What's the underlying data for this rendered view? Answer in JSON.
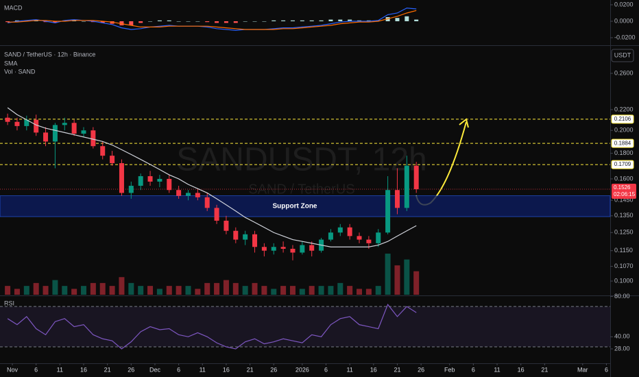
{
  "chart_data": {
    "type": "candlestick",
    "title": "SAND / TetherUS · 12h · Binance",
    "watermark": "SANDUSDT, 12h",
    "watermark_subtitle": "SAND / TetherUS",
    "currency": "USDT",
    "indicators": [
      "SMA",
      "Vol · SAND"
    ],
    "x": [
      -1,
      1,
      3,
      5,
      7,
      9,
      11,
      13,
      15,
      17,
      19,
      21,
      23,
      25,
      27,
      29,
      31,
      33,
      35,
      37,
      39,
      41,
      43,
      45,
      47,
      49,
      51,
      53,
      55,
      57,
      59,
      61,
      63,
      65,
      67,
      69,
      71,
      73,
      75,
      77,
      79,
      81,
      83,
      85
    ],
    "open": [
      0.212,
      0.208,
      0.204,
      0.21,
      0.198,
      0.19,
      0.205,
      0.207,
      0.197,
      0.2,
      0.186,
      0.178,
      0.172,
      0.15,
      0.155,
      0.162,
      0.158,
      0.16,
      0.152,
      0.148,
      0.15,
      0.147,
      0.14,
      0.132,
      0.126,
      0.121,
      0.124,
      0.117,
      0.115,
      0.117,
      0.116,
      0.114,
      0.118,
      0.115,
      0.121,
      0.125,
      0.128,
      0.123,
      0.121,
      0.119,
      0.125,
      0.152,
      0.14,
      0.17
    ],
    "high": [
      0.216,
      0.212,
      0.214,
      0.215,
      0.203,
      0.207,
      0.212,
      0.21,
      0.203,
      0.203,
      0.19,
      0.182,
      0.175,
      0.158,
      0.164,
      0.166,
      0.163,
      0.163,
      0.155,
      0.152,
      0.153,
      0.15,
      0.142,
      0.135,
      0.128,
      0.126,
      0.126,
      0.119,
      0.119,
      0.12,
      0.118,
      0.12,
      0.12,
      0.122,
      0.127,
      0.13,
      0.13,
      0.125,
      0.123,
      0.127,
      0.162,
      0.168,
      0.178,
      0.173
    ],
    "low": [
      0.205,
      0.2,
      0.2,
      0.195,
      0.186,
      0.168,
      0.2,
      0.195,
      0.194,
      0.184,
      0.175,
      0.17,
      0.148,
      0.146,
      0.152,
      0.155,
      0.154,
      0.15,
      0.146,
      0.145,
      0.145,
      0.138,
      0.13,
      0.124,
      0.119,
      0.118,
      0.114,
      0.112,
      0.113,
      0.114,
      0.11,
      0.113,
      0.112,
      0.114,
      0.12,
      0.123,
      0.121,
      0.119,
      0.116,
      0.117,
      0.124,
      0.136,
      0.138,
      0.15
    ],
    "close": [
      0.208,
      0.204,
      0.21,
      0.198,
      0.19,
      0.205,
      0.207,
      0.197,
      0.2,
      0.186,
      0.178,
      0.172,
      0.15,
      0.155,
      0.162,
      0.158,
      0.16,
      0.152,
      0.148,
      0.15,
      0.147,
      0.14,
      0.132,
      0.126,
      0.121,
      0.124,
      0.117,
      0.115,
      0.117,
      0.116,
      0.114,
      0.118,
      0.115,
      0.121,
      0.125,
      0.128,
      0.123,
      0.121,
      0.119,
      0.125,
      0.152,
      0.14,
      0.17,
      0.1526
    ],
    "sma": [
      0.222,
      0.215,
      0.21,
      0.205,
      0.202,
      0.2,
      0.198,
      0.196,
      0.194,
      0.192,
      0.19,
      0.187,
      0.183,
      0.179,
      0.175,
      0.171,
      0.167,
      0.163,
      0.16,
      0.156,
      0.153,
      0.15,
      0.146,
      0.142,
      0.138,
      0.134,
      0.131,
      0.128,
      0.125,
      0.123,
      0.121,
      0.12,
      0.119,
      0.118,
      0.117,
      0.117,
      0.117,
      0.117,
      0.117,
      0.118,
      0.12,
      0.123,
      0.126,
      0.129
    ],
    "volume": [
      3,
      2,
      3,
      4,
      3,
      5,
      3,
      2,
      3,
      4,
      4,
      3,
      6,
      4,
      3,
      3,
      2,
      3,
      3,
      3,
      2,
      4,
      4,
      5,
      4,
      3,
      4,
      3,
      2,
      3,
      3,
      2,
      3,
      3,
      3,
      4,
      3,
      2,
      2,
      3,
      14,
      10,
      12,
      8
    ],
    "colors": {
      "up": "#089981",
      "down": "#f23645",
      "sma": "#d1d4dc",
      "level": "#ffeb3b"
    },
    "log_scale": true,
    "ylim": [
      0.0939,
      0.294
    ],
    "yticks": [
      {
        "value": 0.26,
        "label": "0.2600"
      },
      {
        "value": 0.22,
        "label": "0.2200"
      },
      {
        "value": 0.2,
        "label": "0.2000"
      },
      {
        "value": 0.18,
        "label": "0.1800"
      },
      {
        "value": 0.16,
        "label": "0.1600"
      },
      {
        "value": 0.145,
        "label": "0.1450"
      },
      {
        "value": 0.135,
        "label": "0.1350"
      },
      {
        "value": 0.125,
        "label": "0.1250"
      },
      {
        "value": 0.115,
        "label": "0.1150"
      },
      {
        "value": 0.107,
        "label": "0.1070"
      },
      {
        "value": 0.1,
        "label": "0.1000"
      }
    ],
    "xlim": [
      -2.6,
      125.8
    ],
    "xticks": [
      {
        "value": 0,
        "label": "Nov"
      },
      {
        "value": 5,
        "label": "6"
      },
      {
        "value": 10,
        "label": "11"
      },
      {
        "value": 15,
        "label": "16"
      },
      {
        "value": 20,
        "label": "21"
      },
      {
        "value": 25,
        "label": "26"
      },
      {
        "value": 30,
        "label": "Dec"
      },
      {
        "value": 35,
        "label": "6"
      },
      {
        "value": 40,
        "label": "11"
      },
      {
        "value": 45,
        "label": "16"
      },
      {
        "value": 50,
        "label": "21"
      },
      {
        "value": 55,
        "label": "26"
      },
      {
        "value": 61,
        "label": "2026"
      },
      {
        "value": 66,
        "label": "6"
      },
      {
        "value": 71,
        "label": "11"
      },
      {
        "value": 76,
        "label": "16"
      },
      {
        "value": 81,
        "label": "21"
      },
      {
        "value": 86,
        "label": "26"
      },
      {
        "value": 92,
        "label": "Feb"
      },
      {
        "value": 97,
        "label": "6"
      },
      {
        "value": 102,
        "label": "11"
      },
      {
        "value": 107,
        "label": "16"
      },
      {
        "value": 112,
        "label": "21"
      },
      {
        "value": 120,
        "label": "Mar"
      },
      {
        "value": 125,
        "label": "6"
      }
    ],
    "levels": [
      0.2106,
      0.1884,
      0.1709
    ],
    "current_price": {
      "value": 0.1526,
      "countdown": "02:06:15"
    },
    "support_zone": {
      "label": "Support Zone",
      "range": [
        0.1345,
        0.148
      ]
    },
    "macd": {
      "title": "MACD",
      "ylim": [
        -0.0283,
        0.0258
      ],
      "yticks": [
        {
          "value": 0.02,
          "label": "0.0200"
        },
        {
          "value": 0,
          "label": "0.0000"
        },
        {
          "value": -0.02,
          "label": "-0.0200"
        }
      ],
      "macd": [
        -0.002,
        0,
        0.001,
        0.002,
        0,
        -0.002,
        0.001,
        0.002,
        0.001,
        0,
        -0.002,
        -0.004,
        -0.008,
        -0.01,
        -0.009,
        -0.007,
        -0.006,
        -0.005,
        -0.006,
        -0.006,
        -0.006,
        -0.007,
        -0.009,
        -0.01,
        -0.011,
        -0.01,
        -0.01,
        -0.01,
        -0.009,
        -0.008,
        -0.008,
        -0.007,
        -0.006,
        -0.005,
        -0.003,
        -0.001,
        0,
        0,
        0,
        0.001,
        0.008,
        0.01,
        0.016,
        0.015
      ],
      "signal": [
        -0.001,
        -0.001,
        0,
        0.001,
        0.001,
        0,
        0,
        0.001,
        0.001,
        0.001,
        0,
        -0.001,
        -0.003,
        -0.005,
        -0.007,
        -0.007,
        -0.007,
        -0.006,
        -0.006,
        -0.006,
        -0.006,
        -0.006,
        -0.007,
        -0.008,
        -0.009,
        -0.01,
        -0.01,
        -0.01,
        -0.01,
        -0.009,
        -0.009,
        -0.008,
        -0.007,
        -0.006,
        -0.005,
        -0.003,
        -0.002,
        -0.001,
        -0.001,
        0,
        0.003,
        0.006,
        0.01,
        0.013
      ],
      "histogram": [
        -0.001,
        0.001,
        0.001,
        0.001,
        -0.001,
        -0.002,
        0.001,
        0.001,
        0,
        -0.001,
        -0.002,
        -0.003,
        -0.005,
        -0.005,
        -0.002,
        0,
        0.001,
        0.001,
        0,
        0,
        0,
        -0.001,
        -0.002,
        -0.002,
        -0.002,
        0,
        0,
        0,
        0.001,
        0.001,
        0.001,
        0.001,
        0.001,
        0.001,
        0.002,
        0.002,
        0.002,
        0.001,
        0.001,
        0.001,
        0.005,
        0.004,
        0.006,
        0.002
      ]
    },
    "rsi": {
      "title": "RSI",
      "ylim": [
        13.7,
        80.3
      ],
      "bands": [
        30,
        70
      ],
      "yticks": [
        {
          "value": 80,
          "label": "80.00"
        },
        {
          "value": 40,
          "label": "40.00"
        },
        {
          "value": 28,
          "label": "28.00"
        }
      ],
      "values": [
        58,
        52,
        60,
        48,
        42,
        55,
        58,
        50,
        52,
        42,
        38,
        36,
        28,
        35,
        45,
        50,
        47,
        48,
        42,
        40,
        44,
        40,
        34,
        30,
        28,
        35,
        38,
        33,
        35,
        38,
        36,
        34,
        42,
        40,
        52,
        58,
        60,
        52,
        50,
        48,
        72,
        60,
        70,
        64
      ]
    }
  }
}
